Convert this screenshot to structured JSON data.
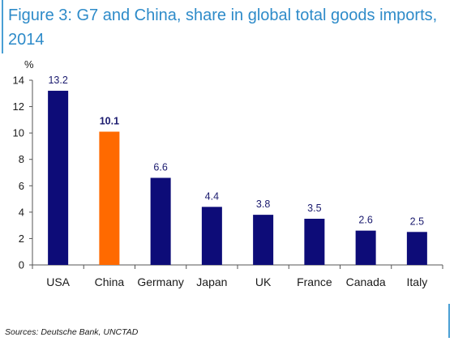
{
  "figure": {
    "title": "Figure 3: G7 and China, share in global total goods imports, 2014",
    "source": "Sources: Deutsche Bank, UNCTAD"
  },
  "colors": {
    "accent": "#2e8bc9",
    "bar": "#0d0c78",
    "highlight": "#ff6a00",
    "highlight_label": "#ff6a00",
    "label": "#1a1a6e"
  },
  "chart_data": {
    "type": "bar",
    "title": "Figure 3: G7 and China, share in global total goods imports, 2014",
    "ylabel": "%",
    "xlabel": "",
    "categories": [
      "USA",
      "China",
      "Germany",
      "Japan",
      "UK",
      "France",
      "Canada",
      "Italy"
    ],
    "values": [
      13.2,
      10.1,
      6.6,
      4.4,
      3.8,
      3.5,
      2.6,
      2.5
    ],
    "value_labels": [
      "13.2",
      "10.1",
      "6.6",
      "4.4",
      "3.8",
      "3.5",
      "2.6",
      "2.5"
    ],
    "highlight_index": 1,
    "ylim": [
      0,
      14
    ],
    "yticks": [
      0,
      2,
      4,
      6,
      8,
      10,
      12,
      14
    ],
    "grid": false,
    "legend": "none"
  }
}
